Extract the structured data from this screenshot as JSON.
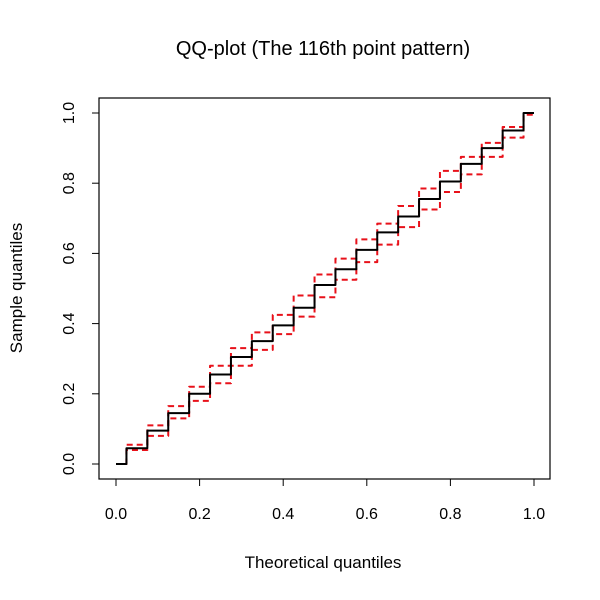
{
  "chart_data": {
    "type": "line",
    "title": "QQ-plot (The 116th point pattern)",
    "xlabel": "Theoretical quantiles",
    "ylabel": "Sample quantiles",
    "xlim": [
      0.0,
      1.0
    ],
    "ylim": [
      0.0,
      1.0
    ],
    "xticks": [
      "0.0",
      "0.2",
      "0.4",
      "0.6",
      "0.8",
      "1.0"
    ],
    "yticks": [
      "0.0",
      "0.2",
      "0.4",
      "0.6",
      "0.8",
      "1.0"
    ],
    "grid": false,
    "legend": "none",
    "series": [
      {
        "color": "#000000",
        "style": "solid",
        "x": [
          0.0,
          0.05,
          0.1,
          0.15,
          0.2,
          0.25,
          0.3,
          0.35,
          0.4,
          0.45,
          0.5,
          0.55,
          0.6,
          0.65,
          0.7,
          0.75,
          0.8,
          0.85,
          0.9,
          0.95,
          1.0
        ],
        "y": [
          0.0,
          0.045,
          0.095,
          0.145,
          0.2,
          0.255,
          0.305,
          0.35,
          0.395,
          0.445,
          0.51,
          0.555,
          0.61,
          0.66,
          0.705,
          0.755,
          0.805,
          0.855,
          0.9,
          0.95,
          1.0
        ]
      },
      {
        "color": "#e8111a",
        "style": "dashed",
        "x": [
          0.0,
          0.05,
          0.1,
          0.15,
          0.2,
          0.25,
          0.3,
          0.35,
          0.4,
          0.45,
          0.5,
          0.55,
          0.6,
          0.65,
          0.7,
          0.75,
          0.8,
          0.85,
          0.9,
          0.95,
          1.0
        ],
        "y": [
          0.0,
          0.055,
          0.11,
          0.165,
          0.22,
          0.28,
          0.33,
          0.375,
          0.425,
          0.48,
          0.54,
          0.585,
          0.64,
          0.685,
          0.735,
          0.785,
          0.835,
          0.875,
          0.915,
          0.96,
          1.0
        ]
      },
      {
        "color": "#e8111a",
        "style": "dashed",
        "x": [
          0.0,
          0.05,
          0.1,
          0.15,
          0.2,
          0.25,
          0.3,
          0.35,
          0.4,
          0.45,
          0.5,
          0.55,
          0.6,
          0.65,
          0.7,
          0.75,
          0.8,
          0.85,
          0.9,
          0.95,
          1.0
        ],
        "y": [
          0.0,
          0.04,
          0.08,
          0.13,
          0.18,
          0.23,
          0.28,
          0.325,
          0.37,
          0.42,
          0.475,
          0.525,
          0.575,
          0.625,
          0.675,
          0.725,
          0.775,
          0.825,
          0.875,
          0.93,
          0.995
        ]
      }
    ]
  }
}
